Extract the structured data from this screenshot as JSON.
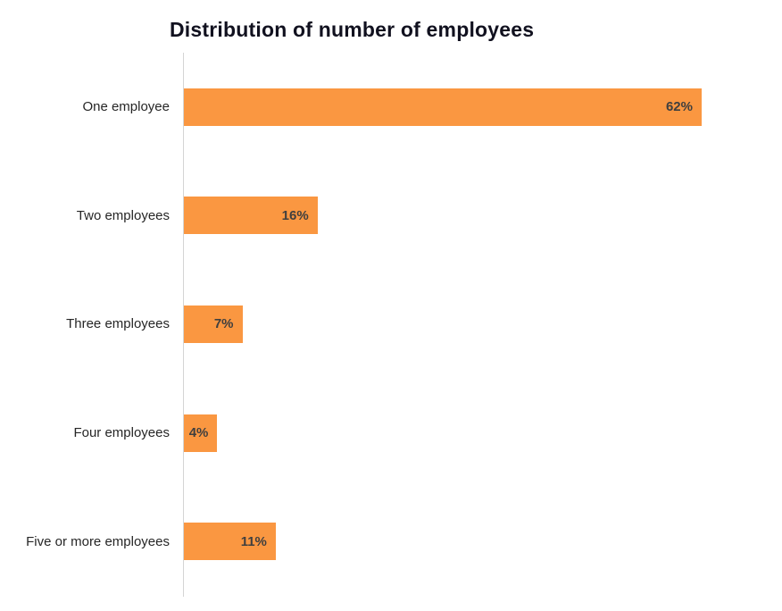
{
  "page": {
    "background": "#FFFFFF"
  },
  "chart_data": {
    "type": "bar",
    "orientation": "horizontal",
    "title": "Distribution of number of employees",
    "categories": [
      "One employee",
      "Two employees",
      "Three employees",
      "Four employees",
      "Five or more employees"
    ],
    "values": [
      62,
      16,
      7,
      4,
      11
    ],
    "value_labels": [
      "62%",
      "16%",
      "7%",
      "4%",
      "11%"
    ],
    "value_label_position": "inside-end",
    "unit": "%",
    "xlabel": "",
    "ylabel": "",
    "xlim": [
      0,
      71.6
    ],
    "grid": false,
    "legend": false,
    "axis_ticks_visible": false,
    "colors": {
      "bar": "#FA9741",
      "value_label": "#3F3F3F",
      "category_label": "#262626",
      "title": "#11111F",
      "axis_line": "#D4D4D4"
    }
  }
}
